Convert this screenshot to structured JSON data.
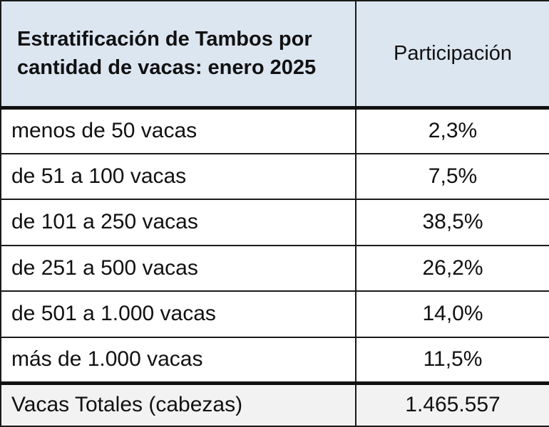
{
  "table": {
    "header": {
      "title_line1": "Estratificación de Tambos por",
      "title_line2": "cantidad de vacas: enero 2025",
      "column": "Participación"
    },
    "rows": [
      {
        "label": "menos de 50 vacas",
        "value": "2,3%"
      },
      {
        "label": "de 51 a 100 vacas",
        "value": "7,5%"
      },
      {
        "label": "de 101 a 250 vacas",
        "value": "38,5%"
      },
      {
        "label": "de 251 a 500 vacas",
        "value": "26,2%"
      },
      {
        "label": "de 501 a 1.000 vacas",
        "value": "14,0%"
      },
      {
        "label": "más de 1.000 vacas",
        "value": "11,5%"
      }
    ],
    "total": {
      "label": "Vacas Totales (cabezas)",
      "value": "1.465.557"
    },
    "colors": {
      "header_bg": "#dce6f1",
      "total_bg": "#f2f2f2",
      "border": "#1a1a1a"
    }
  }
}
